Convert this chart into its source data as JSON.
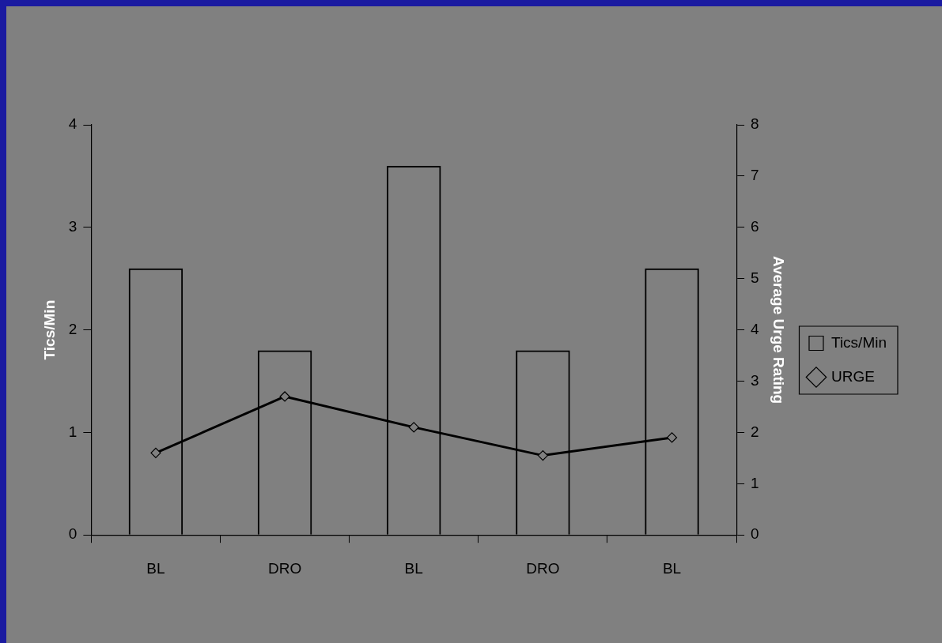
{
  "chart_data": {
    "type": "bar",
    "categories": [
      "BL",
      "DRO",
      "BL",
      "DRO",
      "BL"
    ],
    "series": [
      {
        "name": "Tics/Min",
        "color": "#000000",
        "values": [
          2.6,
          1.8,
          3.6,
          1.8,
          2.6
        ]
      },
      {
        "name": "URGE",
        "type": "line",
        "axis": "y2",
        "color": "#000000",
        "marker": "diamond",
        "values": [
          1.6,
          2.7,
          2.1,
          1.55,
          1.9
        ]
      }
    ],
    "ylabel": "Tics/Min",
    "y2label": "Average Urge Rating",
    "ylim": [
      0,
      4
    ],
    "yticks": [
      0,
      1,
      2,
      3,
      4
    ],
    "y2lim": [
      0,
      8
    ],
    "y2ticks": [
      0,
      1,
      2,
      3,
      4,
      5,
      6,
      7,
      8
    ],
    "grid": false,
    "legend": "right"
  }
}
